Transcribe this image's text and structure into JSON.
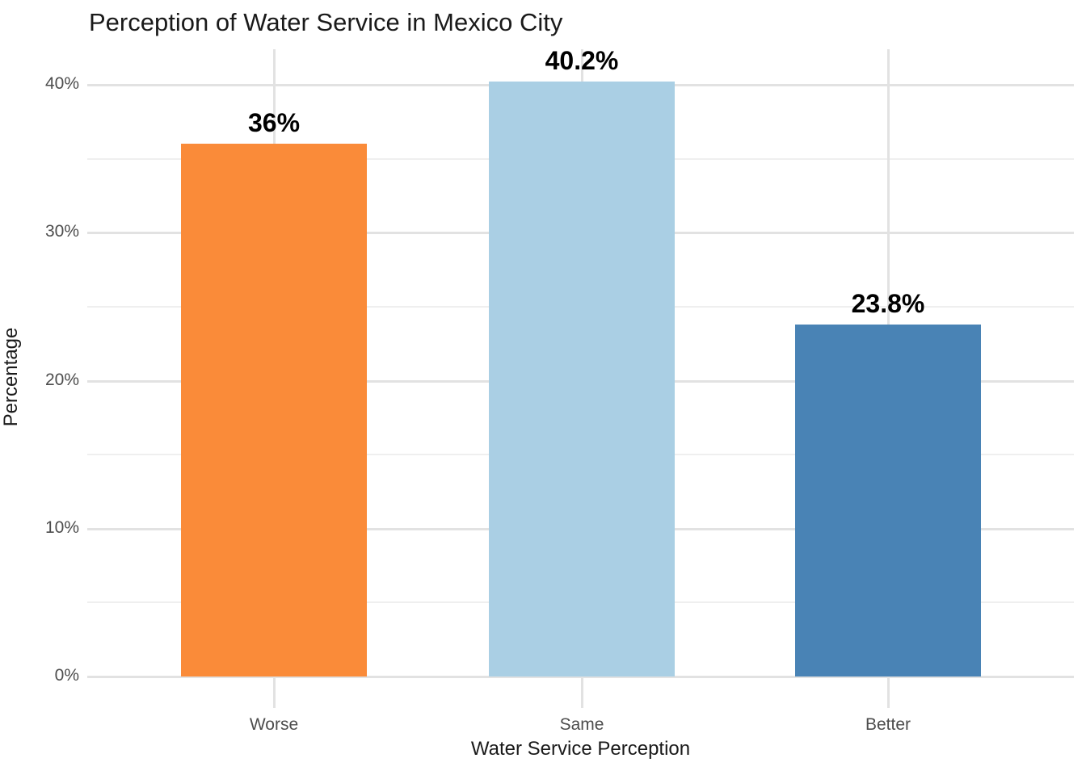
{
  "chart_data": {
    "type": "bar",
    "title": "Perception of Water Service in Mexico City",
    "xlabel": "Water Service Perception",
    "ylabel": "Percentage",
    "categories": [
      "Worse",
      "Same",
      "Better"
    ],
    "values": [
      36,
      40.2,
      23.8
    ],
    "bar_labels": [
      "36%",
      "40.2%",
      "23.8%"
    ],
    "bar_colors": [
      "#FA8B39",
      "#AACFE4",
      "#4983B5"
    ],
    "y_ticks": [
      {
        "value": 0,
        "label": "0%"
      },
      {
        "value": 10,
        "label": "10%"
      },
      {
        "value": 20,
        "label": "20%"
      },
      {
        "value": 30,
        "label": "30%"
      },
      {
        "value": 40,
        "label": "40%"
      }
    ],
    "y_minor_ticks": [
      5,
      15,
      25,
      35
    ],
    "ylim": [
      0,
      42.4
    ],
    "grid": "horizontal major+minor, vertical at category centers",
    "legend": "none",
    "background": "#FFFFFF"
  }
}
